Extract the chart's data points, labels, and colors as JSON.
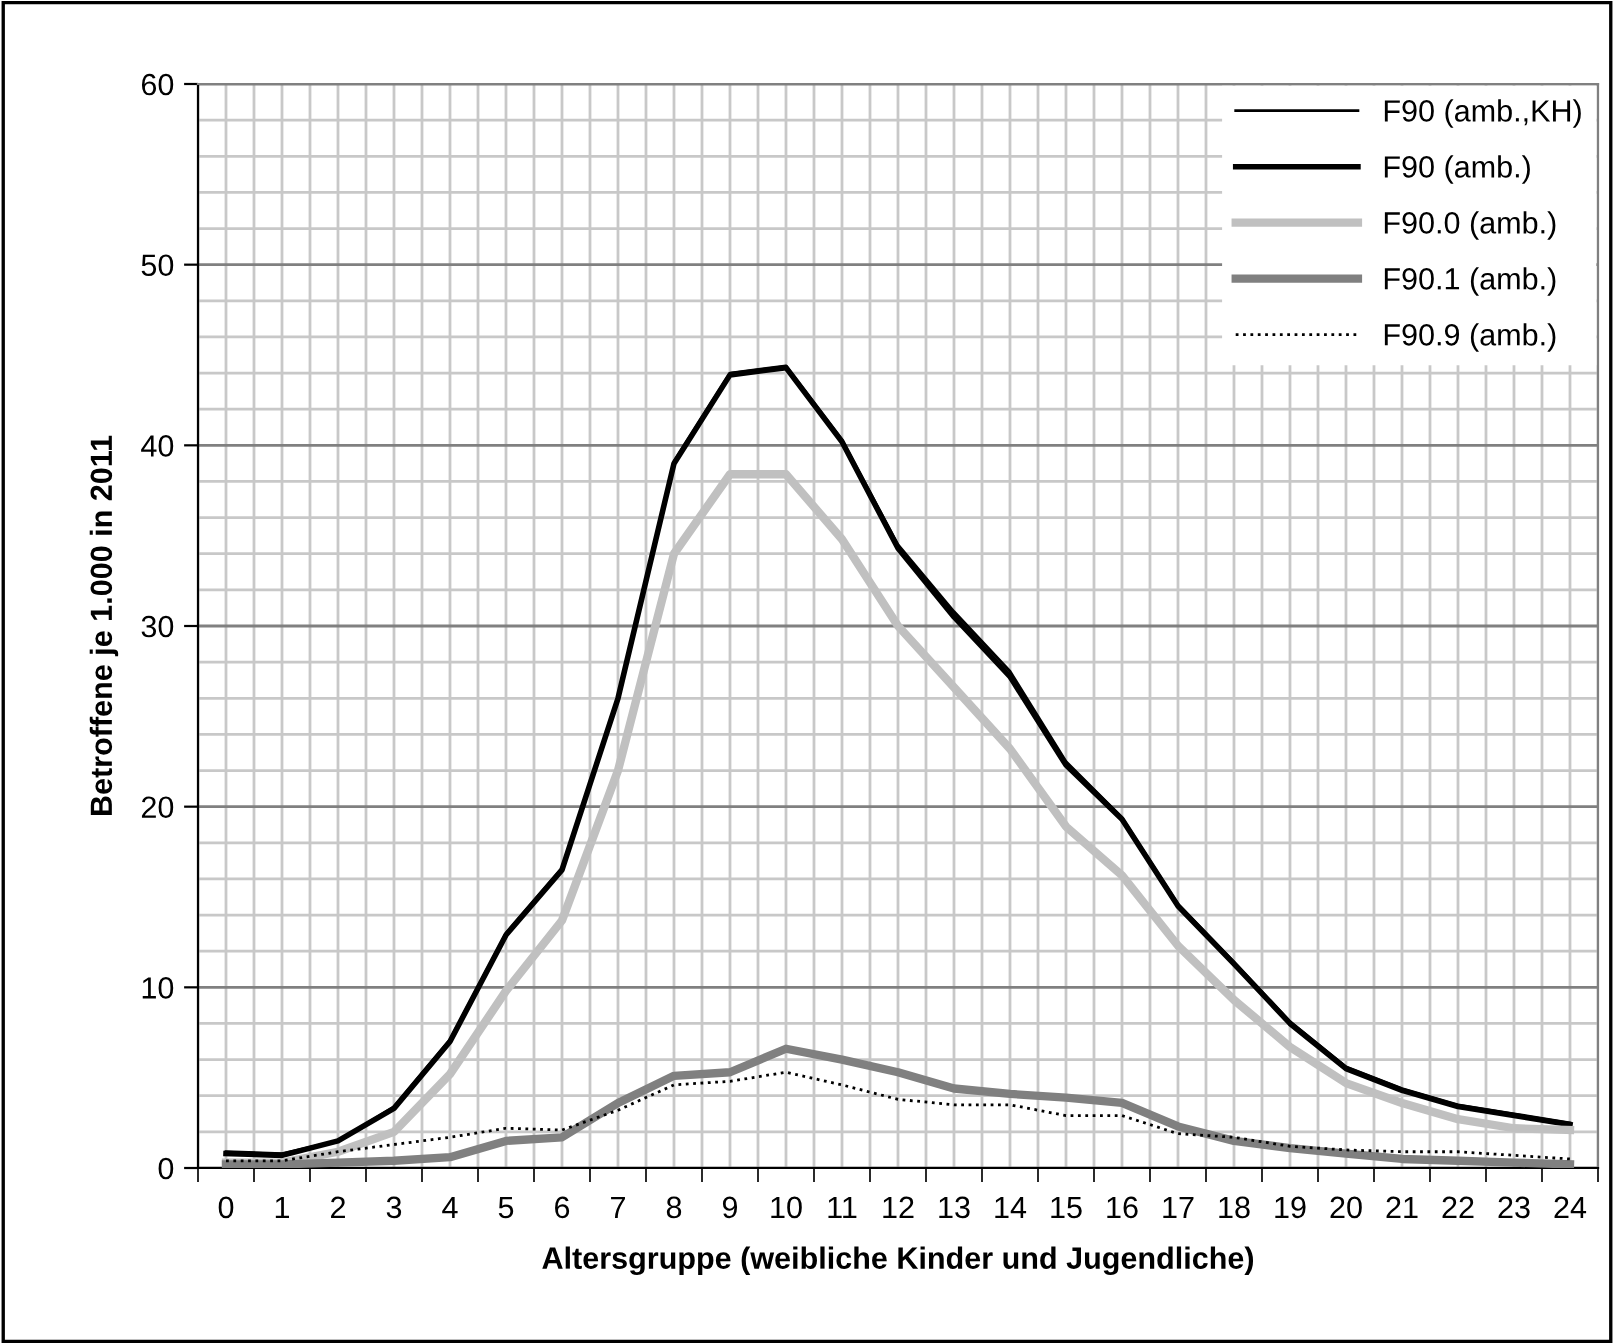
{
  "chart_data": {
    "type": "line",
    "xlabel": "Altersgruppe (weibliche Kinder und Jugendliche)",
    "ylabel": "Betroffene je 1.000 in 2011",
    "categories": [
      "0",
      "1",
      "2",
      "3",
      "4",
      "5",
      "6",
      "7",
      "8",
      "9",
      "10",
      "11",
      "12",
      "13",
      "14",
      "15",
      "16",
      "17",
      "18",
      "19",
      "20",
      "21",
      "22",
      "23",
      "24"
    ],
    "ylim": [
      0,
      60
    ],
    "yticks": [
      0,
      10,
      20,
      30,
      40,
      50,
      60
    ],
    "grid": true,
    "legend": "top right",
    "marker": "none",
    "series": [
      {
        "name": "F90 (amb.,KH)",
        "color": "#000000",
        "line_style": "solid",
        "values": [
          0.9,
          0.8,
          1.5,
          3.4,
          7.1,
          13.0,
          16.6,
          26.1,
          39.1,
          44.0,
          44.4,
          40.3,
          34.5,
          30.8,
          27.5,
          22.5,
          19.4,
          14.6,
          11.4,
          8.1,
          5.6,
          4.4,
          3.5,
          3.0,
          2.5
        ]
      },
      {
        "name": "F90 (amb.)",
        "color": "#000000",
        "line_style": "solid",
        "values": [
          0.8,
          0.7,
          1.5,
          3.3,
          7.0,
          12.9,
          16.5,
          26.0,
          39.0,
          43.9,
          44.3,
          40.2,
          34.3,
          30.5,
          27.2,
          22.3,
          19.3,
          14.5,
          11.3,
          8.0,
          5.5,
          4.3,
          3.4,
          2.9,
          2.4
        ]
      },
      {
        "name": "F90.0 (amb.)",
        "color": "#c0c0c0",
        "line_style": "solid",
        "values": [
          0.3,
          0.3,
          0.9,
          2.0,
          5.2,
          9.8,
          13.7,
          22.0,
          34.0,
          38.4,
          38.4,
          34.8,
          30.0,
          26.6,
          23.2,
          18.9,
          16.2,
          12.3,
          9.3,
          6.7,
          4.7,
          3.6,
          2.7,
          2.2,
          2.1
        ]
      },
      {
        "name": "F90.1 (amb.)",
        "color": "#808080",
        "line_style": "solid",
        "values": [
          0.2,
          0.2,
          0.3,
          0.4,
          0.6,
          1.5,
          1.7,
          3.6,
          5.1,
          5.3,
          6.6,
          6.0,
          5.3,
          4.4,
          4.1,
          3.9,
          3.6,
          2.3,
          1.5,
          1.1,
          0.8,
          0.5,
          0.4,
          0.3,
          0.2
        ]
      },
      {
        "name": "F90.9 (amb.)",
        "color": "#000000",
        "line_style": "dotted",
        "values": [
          0.4,
          0.4,
          0.9,
          1.3,
          1.7,
          2.2,
          2.1,
          3.2,
          4.6,
          4.8,
          5.3,
          4.6,
          3.8,
          3.5,
          3.5,
          2.9,
          2.9,
          1.9,
          1.7,
          1.2,
          1.0,
          0.9,
          0.9,
          0.7,
          0.5
        ]
      }
    ]
  }
}
